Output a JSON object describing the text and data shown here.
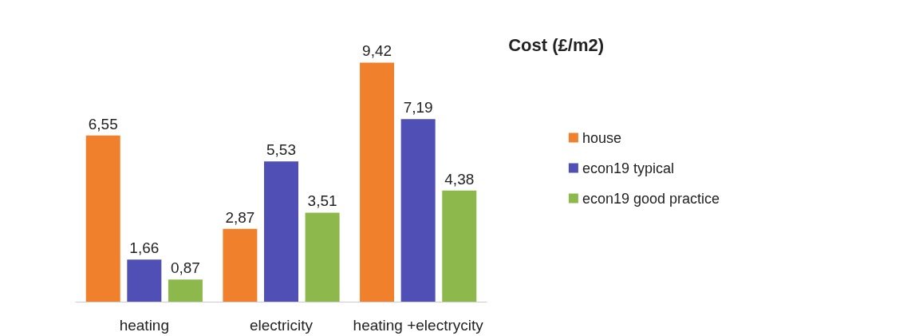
{
  "chart_data": {
    "type": "bar",
    "title": "Cost (£/m2)",
    "categories": [
      "heating",
      "electricity",
      "heating +electrycity"
    ],
    "series": [
      {
        "name": "house",
        "color": "#f0802c",
        "values": [
          6.55,
          2.87,
          9.42
        ],
        "value_labels": [
          "6,55",
          "2,87",
          "9,42"
        ]
      },
      {
        "name": "econ19 typical",
        "color": "#4f4fb5",
        "values": [
          1.66,
          5.53,
          7.19
        ],
        "value_labels": [
          "1,66",
          "5,53",
          "7,19"
        ]
      },
      {
        "name": "econ19 good practice",
        "color": "#8db84c",
        "values": [
          0.87,
          3.51,
          4.38
        ],
        "value_labels": [
          "0,87",
          "3,51",
          "4,38"
        ]
      }
    ],
    "legend": "right",
    "tick_labels": "x"
  }
}
